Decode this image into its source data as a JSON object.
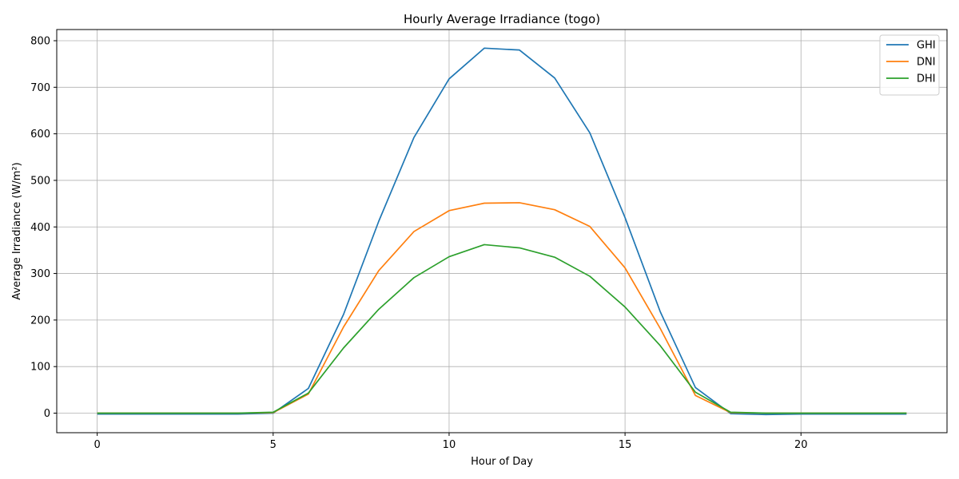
{
  "chart_data": {
    "type": "line",
    "title": "Hourly Average Irradiance (togo)",
    "xlabel": "Hour of Day",
    "ylabel": "Average Irradiance (W/m²)",
    "xlim": [
      -1.15,
      24.15
    ],
    "ylim": [
      -42,
      824
    ],
    "xticks": [
      0,
      5,
      10,
      15,
      20
    ],
    "yticks": [
      0,
      100,
      200,
      300,
      400,
      500,
      600,
      700,
      800
    ],
    "grid": true,
    "legend_position": "top-right",
    "x": [
      0,
      1,
      2,
      3,
      4,
      5,
      6,
      7,
      8,
      9,
      10,
      11,
      12,
      13,
      14,
      15,
      16,
      17,
      18,
      19,
      20,
      21,
      22,
      23
    ],
    "series": [
      {
        "name": "GHI",
        "color": "#1f77b4",
        "values": [
          -2,
          -2,
          -2,
          -2,
          -2,
          0,
          53,
          212,
          412,
          592,
          718,
          784,
          780,
          720,
          602,
          420,
          218,
          55,
          -1,
          -3,
          -2,
          -2,
          -2,
          -2
        ]
      },
      {
        "name": "DNI",
        "color": "#ff7f0e",
        "values": [
          0,
          0,
          0,
          0,
          0,
          1,
          41,
          185,
          306,
          390,
          435,
          451,
          452,
          437,
          401,
          312,
          182,
          38,
          1,
          0,
          0,
          0,
          0,
          0
        ]
      },
      {
        "name": "DHI",
        "color": "#2ca02c",
        "values": [
          0,
          0,
          0,
          0,
          0,
          2,
          43,
          140,
          223,
          291,
          336,
          362,
          355,
          335,
          294,
          228,
          145,
          45,
          2,
          0,
          0,
          0,
          0,
          0
        ]
      }
    ]
  }
}
